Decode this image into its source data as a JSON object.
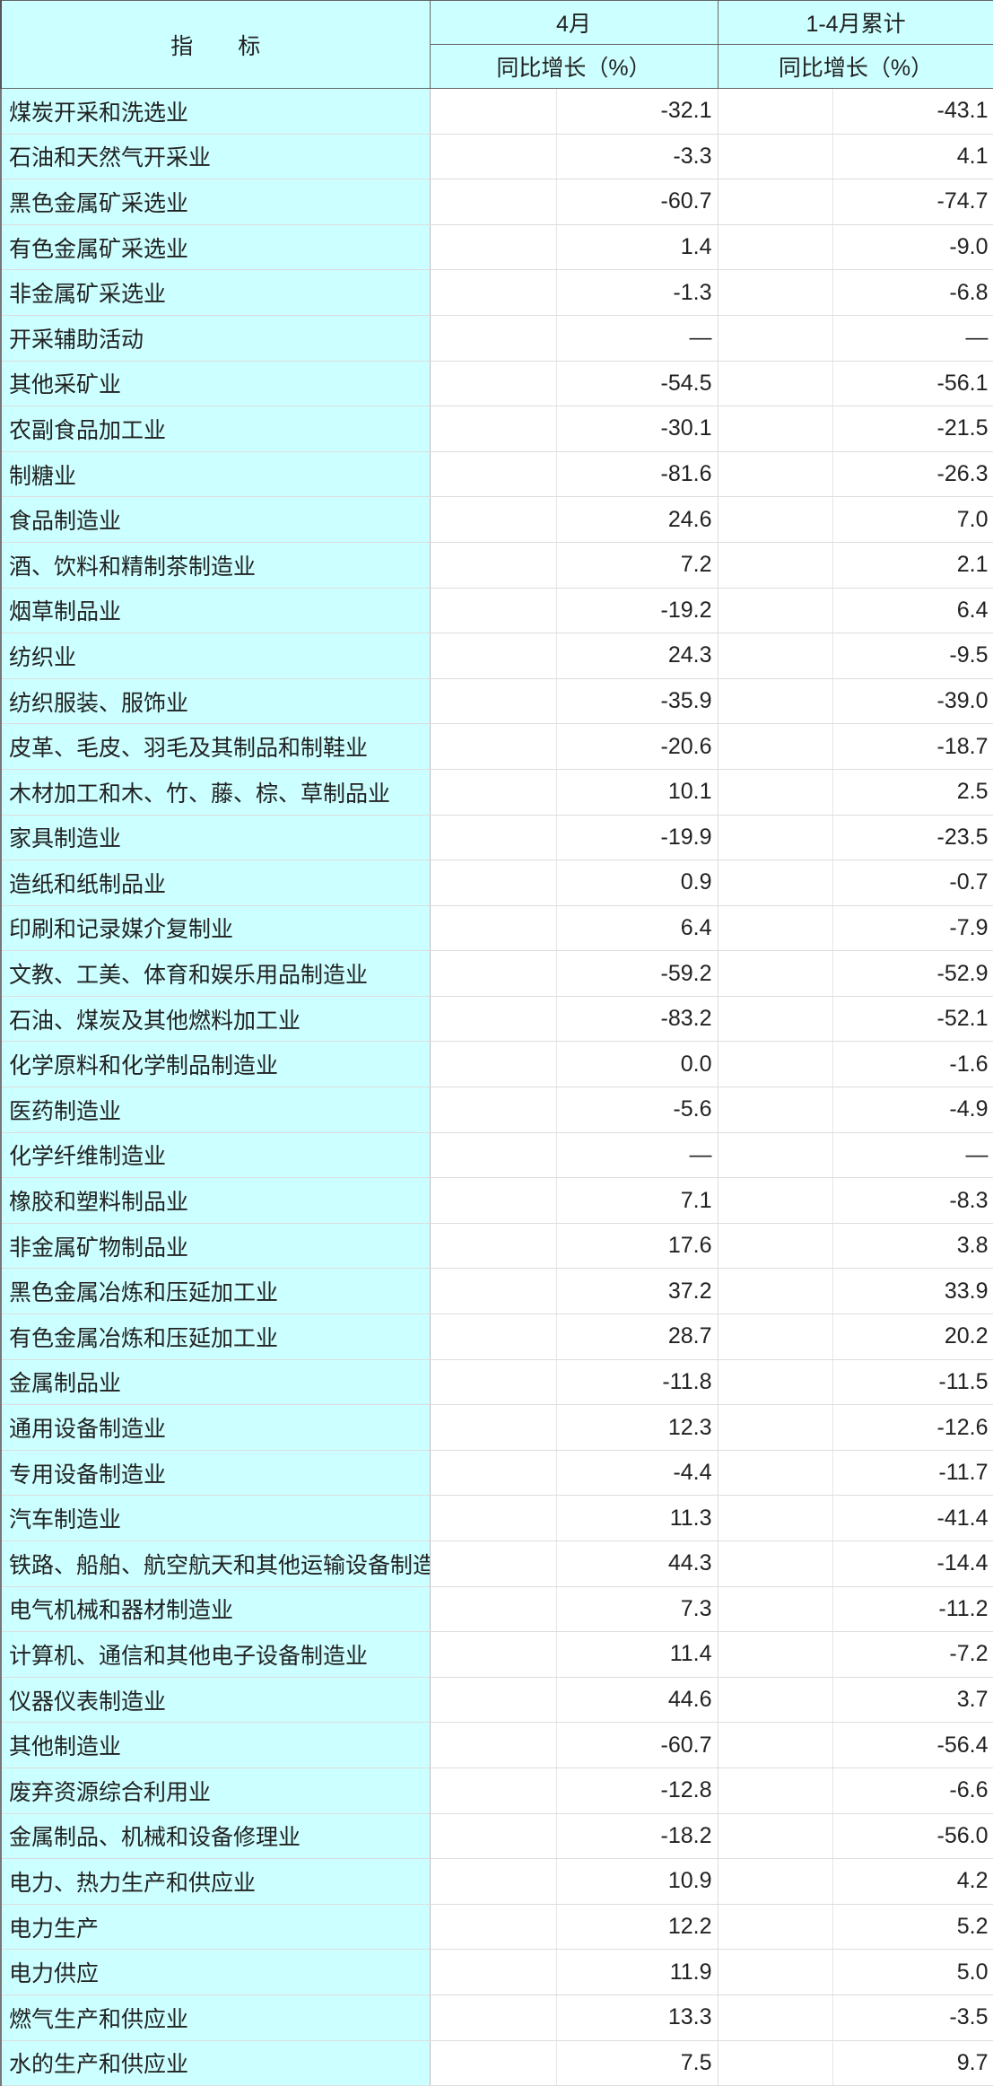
{
  "header": {
    "indicator": "指　　标",
    "col_april": "4月",
    "col_cumulative": "1-4月累计",
    "sub_april": "同比增长（%）",
    "sub_cumulative": "同比增长（%）"
  },
  "rows": [
    {
      "name": "煤炭开采和洗选业",
      "april": "-32.1",
      "cum": "-43.1"
    },
    {
      "name": "石油和天然气开采业",
      "april": "-3.3",
      "cum": "4.1"
    },
    {
      "name": "黑色金属矿采选业",
      "april": "-60.7",
      "cum": "-74.7"
    },
    {
      "name": "有色金属矿采选业",
      "april": "1.4",
      "cum": "-9.0"
    },
    {
      "name": "非金属矿采选业",
      "april": "-1.3",
      "cum": "-6.8"
    },
    {
      "name": "开采辅助活动",
      "april": "—",
      "cum": "—"
    },
    {
      "name": "其他采矿业",
      "april": "-54.5",
      "cum": "-56.1"
    },
    {
      "name": "农副食品加工业",
      "april": "-30.1",
      "cum": "-21.5"
    },
    {
      "name": "制糖业",
      "april": "-81.6",
      "cum": "-26.3"
    },
    {
      "name": "食品制造业",
      "april": "24.6",
      "cum": "7.0"
    },
    {
      "name": "酒、饮料和精制茶制造业",
      "april": "7.2",
      "cum": "2.1"
    },
    {
      "name": "烟草制品业",
      "april": "-19.2",
      "cum": "6.4"
    },
    {
      "name": "纺织业",
      "april": "24.3",
      "cum": "-9.5"
    },
    {
      "name": "纺织服装、服饰业",
      "april": "-35.9",
      "cum": "-39.0"
    },
    {
      "name": "皮革、毛皮、羽毛及其制品和制鞋业",
      "april": "-20.6",
      "cum": "-18.7"
    },
    {
      "name": "木材加工和木、竹、藤、棕、草制品业",
      "april": "10.1",
      "cum": "2.5"
    },
    {
      "name": "家具制造业",
      "april": "-19.9",
      "cum": "-23.5"
    },
    {
      "name": "造纸和纸制品业",
      "april": "0.9",
      "cum": "-0.7"
    },
    {
      "name": "印刷和记录媒介复制业",
      "april": "6.4",
      "cum": "-7.9"
    },
    {
      "name": "文教、工美、体育和娱乐用品制造业",
      "april": "-59.2",
      "cum": "-52.9"
    },
    {
      "name": "石油、煤炭及其他燃料加工业",
      "april": "-83.2",
      "cum": "-52.1"
    },
    {
      "name": "化学原料和化学制品制造业",
      "april": "0.0",
      "cum": "-1.6"
    },
    {
      "name": "医药制造业",
      "april": "-5.6",
      "cum": "-4.9"
    },
    {
      "name": "化学纤维制造业",
      "april": "—",
      "cum": "—"
    },
    {
      "name": "橡胶和塑料制品业",
      "april": "7.1",
      "cum": "-8.3"
    },
    {
      "name": "非金属矿物制品业",
      "april": "17.6",
      "cum": "3.8"
    },
    {
      "name": "黑色金属冶炼和压延加工业",
      "april": "37.2",
      "cum": "33.9"
    },
    {
      "name": "有色金属冶炼和压延加工业",
      "april": "28.7",
      "cum": "20.2"
    },
    {
      "name": "金属制品业",
      "april": "-11.8",
      "cum": "-11.5"
    },
    {
      "name": "通用设备制造业",
      "april": "12.3",
      "cum": "-12.6"
    },
    {
      "name": "专用设备制造业",
      "april": "-4.4",
      "cum": "-11.7"
    },
    {
      "name": "汽车制造业",
      "april": "11.3",
      "cum": "-41.4"
    },
    {
      "name": "铁路、船舶、航空航天和其他运输设备制造业",
      "april": "44.3",
      "cum": "-14.4"
    },
    {
      "name": "电气机械和器材制造业",
      "april": "7.3",
      "cum": "-11.2"
    },
    {
      "name": "计算机、通信和其他电子设备制造业",
      "april": "11.4",
      "cum": "-7.2"
    },
    {
      "name": "仪器仪表制造业",
      "april": "44.6",
      "cum": "3.7"
    },
    {
      "name": "其他制造业",
      "april": "-60.7",
      "cum": "-56.4"
    },
    {
      "name": "废弃资源综合利用业",
      "april": "-12.8",
      "cum": "-6.6"
    },
    {
      "name": "金属制品、机械和设备修理业",
      "april": "-18.2",
      "cum": "-56.0"
    },
    {
      "name": "电力、热力生产和供应业",
      "april": "10.9",
      "cum": "4.2"
    },
    {
      "name": "电力生产",
      "april": "12.2",
      "cum": "5.2"
    },
    {
      "name": "电力供应",
      "april": "11.9",
      "cum": "5.0"
    },
    {
      "name": "燃气生产和供应业",
      "april": "13.3",
      "cum": "-3.5"
    },
    {
      "name": "水的生产和供应业",
      "april": "7.5",
      "cum": "9.7"
    }
  ]
}
